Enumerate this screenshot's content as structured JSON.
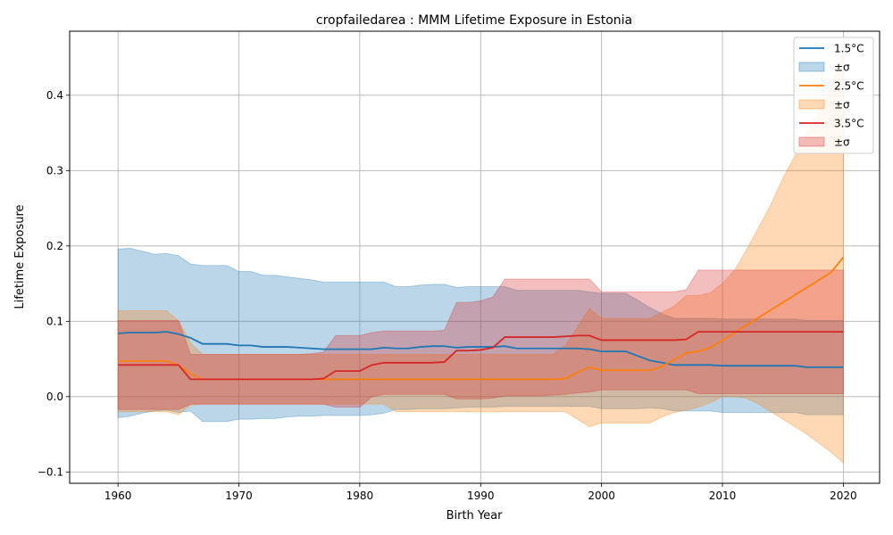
{
  "chart_data": {
    "type": "line",
    "title": "cropfailedarea : MMM Lifetime Exposure in Estonia",
    "xlabel": "Birth Year",
    "ylabel": "Lifetime Exposure",
    "xlim": [
      1956,
      2023
    ],
    "ylim": [
      -0.115,
      0.485
    ],
    "xticks": [
      1960,
      1970,
      1980,
      1990,
      2000,
      2010,
      2020
    ],
    "yticks": [
      -0.1,
      0.0,
      0.1,
      0.2,
      0.3,
      0.4
    ],
    "ytick_labels": [
      "−0.1",
      "0.0",
      "0.1",
      "0.2",
      "0.3",
      "0.4"
    ],
    "grid": true,
    "legend_position": "top-right",
    "band_label": "±σ",
    "x": [
      1960,
      1961,
      1962,
      1963,
      1964,
      1965,
      1966,
      1967,
      1968,
      1969,
      1970,
      1971,
      1972,
      1973,
      1974,
      1975,
      1976,
      1977,
      1978,
      1979,
      1980,
      1981,
      1982,
      1983,
      1984,
      1985,
      1986,
      1987,
      1988,
      1989,
      1990,
      1991,
      1992,
      1993,
      1994,
      1995,
      1996,
      1997,
      1998,
      1999,
      2000,
      2001,
      2002,
      2003,
      2004,
      2005,
      2006,
      2007,
      2008,
      2009,
      2010,
      2011,
      2012,
      2013,
      2014,
      2015,
      2016,
      2017,
      2018,
      2019,
      2020
    ],
    "series": [
      {
        "name": "1.5°C",
        "color": "#1f77b4",
        "mean": [
          0.084,
          0.085,
          0.085,
          0.085,
          0.086,
          0.083,
          0.078,
          0.07,
          0.07,
          0.07,
          0.068,
          0.068,
          0.066,
          0.066,
          0.066,
          0.065,
          0.064,
          0.063,
          0.063,
          0.063,
          0.063,
          0.063,
          0.065,
          0.064,
          0.064,
          0.066,
          0.067,
          0.067,
          0.065,
          0.066,
          0.066,
          0.066,
          0.067,
          0.064,
          0.064,
          0.064,
          0.064,
          0.064,
          0.064,
          0.063,
          0.06,
          0.06,
          0.06,
          0.054,
          0.048,
          0.045,
          0.042,
          0.042,
          0.042,
          0.042,
          0.041,
          0.041,
          0.041,
          0.041,
          0.041,
          0.041,
          0.041,
          0.039,
          0.039,
          0.039,
          0.039
        ],
        "upper": [
          0.196,
          0.197,
          0.193,
          0.189,
          0.19,
          0.187,
          0.176,
          0.174,
          0.174,
          0.174,
          0.166,
          0.166,
          0.161,
          0.161,
          0.159,
          0.157,
          0.155,
          0.152,
          0.152,
          0.152,
          0.152,
          0.152,
          0.152,
          0.146,
          0.146,
          0.148,
          0.149,
          0.149,
          0.145,
          0.146,
          0.146,
          0.146,
          0.146,
          0.141,
          0.141,
          0.141,
          0.141,
          0.141,
          0.141,
          0.139,
          0.137,
          0.137,
          0.137,
          0.128,
          0.118,
          0.11,
          0.104,
          0.104,
          0.104,
          0.104,
          0.103,
          0.103,
          0.103,
          0.103,
          0.103,
          0.103,
          0.103,
          0.101,
          0.101,
          0.101,
          0.101
        ],
        "lower": [
          -0.028,
          -0.026,
          -0.022,
          -0.019,
          -0.018,
          -0.021,
          -0.019,
          -0.033,
          -0.033,
          -0.033,
          -0.03,
          -0.03,
          -0.029,
          -0.029,
          -0.027,
          -0.026,
          -0.026,
          -0.025,
          -0.025,
          -0.025,
          -0.025,
          -0.024,
          -0.022,
          -0.017,
          -0.017,
          -0.016,
          -0.016,
          -0.016,
          -0.015,
          -0.014,
          -0.014,
          -0.014,
          -0.013,
          -0.013,
          -0.013,
          -0.013,
          -0.013,
          -0.013,
          -0.013,
          -0.013,
          -0.016,
          -0.016,
          -0.016,
          -0.016,
          -0.015,
          -0.016,
          -0.019,
          -0.019,
          -0.019,
          -0.019,
          -0.021,
          -0.021,
          -0.021,
          -0.021,
          -0.021,
          -0.021,
          -0.021,
          -0.024,
          -0.024,
          -0.024,
          -0.024
        ]
      },
      {
        "name": "2.5°C",
        "color": "#ff7f0e",
        "mean": [
          0.047,
          0.047,
          0.047,
          0.047,
          0.047,
          0.042,
          0.03,
          0.023,
          0.023,
          0.023,
          0.023,
          0.023,
          0.023,
          0.023,
          0.023,
          0.023,
          0.023,
          0.023,
          0.023,
          0.023,
          0.023,
          0.023,
          0.023,
          0.023,
          0.023,
          0.023,
          0.023,
          0.023,
          0.023,
          0.023,
          0.023,
          0.023,
          0.023,
          0.023,
          0.023,
          0.023,
          0.023,
          0.024,
          0.032,
          0.039,
          0.035,
          0.035,
          0.035,
          0.035,
          0.035,
          0.04,
          0.049,
          0.058,
          0.06,
          0.065,
          0.075,
          0.085,
          0.095,
          0.105,
          0.115,
          0.125,
          0.135,
          0.145,
          0.155,
          0.165,
          0.185
        ],
        "upper": [
          0.114,
          0.114,
          0.114,
          0.114,
          0.114,
          0.101,
          0.071,
          0.056,
          0.056,
          0.056,
          0.056,
          0.056,
          0.056,
          0.056,
          0.056,
          0.056,
          0.056,
          0.056,
          0.056,
          0.056,
          0.056,
          0.056,
          0.056,
          0.056,
          0.056,
          0.056,
          0.056,
          0.056,
          0.056,
          0.056,
          0.056,
          0.056,
          0.056,
          0.056,
          0.056,
          0.056,
          0.056,
          0.068,
          0.092,
          0.117,
          0.104,
          0.104,
          0.104,
          0.104,
          0.104,
          0.112,
          0.12,
          0.134,
          0.134,
          0.138,
          0.15,
          0.168,
          0.195,
          0.225,
          0.255,
          0.29,
          0.32,
          0.35,
          0.38,
          0.41,
          0.458
        ],
        "lower": [
          -0.02,
          -0.02,
          -0.02,
          -0.02,
          -0.02,
          -0.024,
          -0.011,
          -0.01,
          -0.01,
          -0.01,
          -0.01,
          -0.01,
          -0.01,
          -0.01,
          -0.01,
          -0.01,
          -0.01,
          -0.01,
          -0.01,
          -0.01,
          -0.01,
          -0.01,
          -0.01,
          -0.02,
          -0.02,
          -0.02,
          -0.02,
          -0.02,
          -0.02,
          -0.02,
          -0.02,
          -0.02,
          -0.02,
          -0.02,
          -0.02,
          -0.02,
          -0.02,
          -0.02,
          -0.03,
          -0.04,
          -0.035,
          -0.035,
          -0.035,
          -0.035,
          -0.035,
          -0.027,
          -0.021,
          -0.018,
          -0.014,
          -0.008,
          0.0,
          0.0,
          -0.002,
          -0.01,
          -0.02,
          -0.03,
          -0.04,
          -0.05,
          -0.062,
          -0.074,
          -0.088
        ]
      },
      {
        "name": "3.5°C",
        "color": "#d62728",
        "mean": [
          0.042,
          0.042,
          0.042,
          0.042,
          0.042,
          0.042,
          0.023,
          0.023,
          0.023,
          0.023,
          0.023,
          0.023,
          0.023,
          0.023,
          0.023,
          0.023,
          0.023,
          0.024,
          0.034,
          0.034,
          0.034,
          0.042,
          0.045,
          0.045,
          0.045,
          0.045,
          0.045,
          0.046,
          0.061,
          0.061,
          0.062,
          0.065,
          0.079,
          0.079,
          0.079,
          0.079,
          0.079,
          0.08,
          0.081,
          0.081,
          0.075,
          0.075,
          0.075,
          0.075,
          0.075,
          0.075,
          0.075,
          0.076,
          0.086,
          0.086,
          0.086,
          0.086,
          0.086,
          0.086,
          0.086,
          0.086,
          0.086,
          0.086,
          0.086,
          0.086,
          0.086
        ],
        "upper": [
          0.101,
          0.101,
          0.101,
          0.101,
          0.101,
          0.101,
          0.056,
          0.056,
          0.056,
          0.056,
          0.056,
          0.056,
          0.056,
          0.056,
          0.056,
          0.056,
          0.057,
          0.059,
          0.081,
          0.081,
          0.081,
          0.085,
          0.087,
          0.087,
          0.087,
          0.087,
          0.087,
          0.088,
          0.125,
          0.125,
          0.127,
          0.132,
          0.156,
          0.156,
          0.156,
          0.156,
          0.156,
          0.156,
          0.156,
          0.156,
          0.139,
          0.139,
          0.139,
          0.139,
          0.139,
          0.139,
          0.139,
          0.142,
          0.168,
          0.168,
          0.168,
          0.168,
          0.168,
          0.168,
          0.168,
          0.168,
          0.168,
          0.168,
          0.168,
          0.168,
          0.168
        ],
        "lower": [
          -0.017,
          -0.017,
          -0.017,
          -0.017,
          -0.017,
          -0.017,
          -0.01,
          -0.01,
          -0.01,
          -0.01,
          -0.01,
          -0.01,
          -0.01,
          -0.01,
          -0.01,
          -0.01,
          -0.01,
          -0.01,
          -0.014,
          -0.014,
          -0.014,
          0.0,
          0.003,
          0.003,
          0.003,
          0.003,
          0.003,
          0.003,
          -0.003,
          -0.003,
          -0.003,
          -0.002,
          0.001,
          0.001,
          0.001,
          0.001,
          0.002,
          0.003,
          0.005,
          0.006,
          0.009,
          0.009,
          0.009,
          0.009,
          0.009,
          0.009,
          0.009,
          0.009,
          0.004,
          0.004,
          0.004,
          0.004,
          0.004,
          0.004,
          0.004,
          0.004,
          0.004,
          0.004,
          0.004,
          0.004,
          0.004
        ]
      }
    ]
  }
}
